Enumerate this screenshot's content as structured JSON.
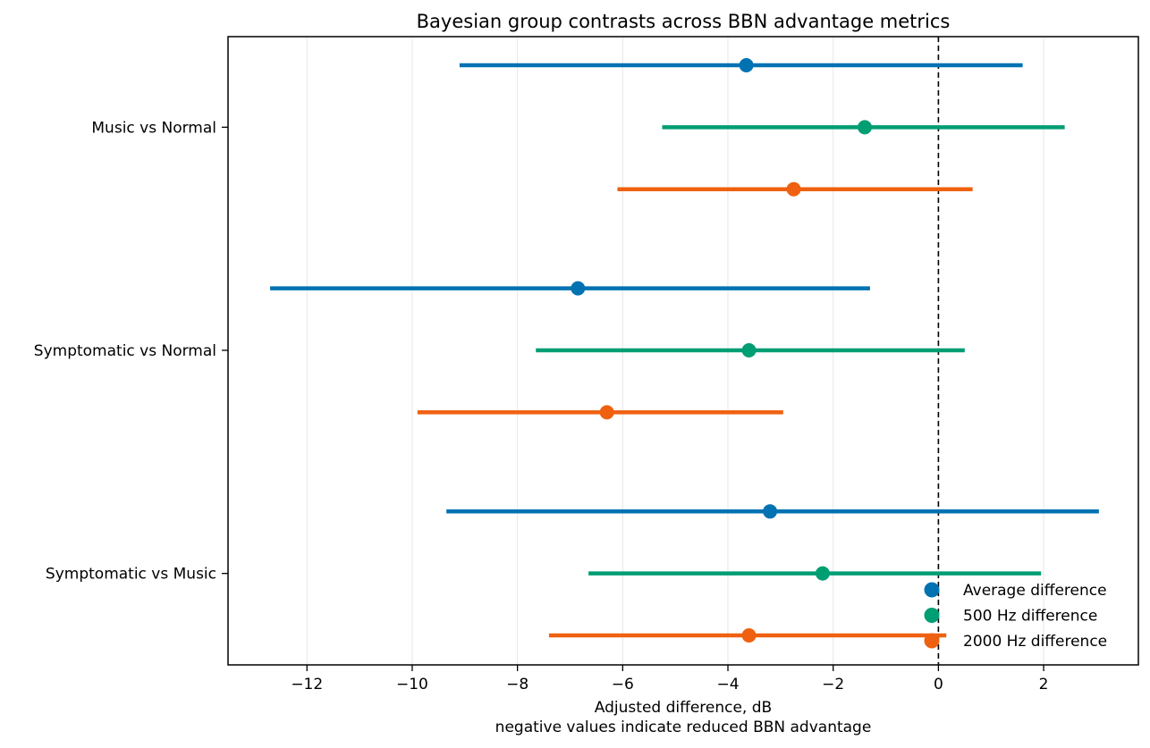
{
  "chart_data": {
    "type": "scatter",
    "title": "Bayesian group contrasts across BBN advantage metrics",
    "xlabel": "Adjusted difference, dB",
    "xlabel_line2": "negative values indicate reduced BBN advantage",
    "ylabel": "",
    "xlim": [
      -13.5,
      3.8
    ],
    "x_ticks": [
      -12,
      -10,
      -8,
      -6,
      -4,
      -2,
      0,
      2
    ],
    "x_tick_labels": [
      "−12",
      "−10",
      "−8",
      "−6",
      "−4",
      "−2",
      "0",
      "2"
    ],
    "grid": "vertical",
    "reference_line": {
      "x": 0,
      "style": "dashed"
    },
    "legend": {
      "position": "lower-right"
    },
    "categories": [
      "Music vs Normal",
      "Symptomatic vs Normal",
      "Symptomatic vs Music"
    ],
    "series": [
      {
        "name": "Average difference",
        "color": "#0072b2",
        "points": [
          {
            "category": "Music vs Normal",
            "estimate": -3.65,
            "lower": -9.1,
            "upper": 1.6
          },
          {
            "category": "Symptomatic vs Normal",
            "estimate": -6.85,
            "lower": -12.7,
            "upper": -1.3
          },
          {
            "category": "Symptomatic vs Music",
            "estimate": -3.2,
            "lower": -9.35,
            "upper": 3.05
          }
        ]
      },
      {
        "name": "500 Hz difference",
        "color": "#009e73",
        "points": [
          {
            "category": "Music vs Normal",
            "estimate": -1.4,
            "lower": -5.25,
            "upper": 2.4
          },
          {
            "category": "Symptomatic vs Normal",
            "estimate": -3.6,
            "lower": -7.65,
            "upper": 0.5
          },
          {
            "category": "Symptomatic vs Music",
            "estimate": -2.2,
            "lower": -6.65,
            "upper": 1.95
          }
        ]
      },
      {
        "name": "2000 Hz difference",
        "color": "#ef6110",
        "points": [
          {
            "category": "Music vs Normal",
            "estimate": -2.75,
            "lower": -6.1,
            "upper": 0.65
          },
          {
            "category": "Symptomatic vs Normal",
            "estimate": -6.3,
            "lower": -9.9,
            "upper": -2.95
          },
          {
            "category": "Symptomatic vs Music",
            "estimate": -3.6,
            "lower": -7.4,
            "upper": 0.15
          }
        ]
      }
    ]
  }
}
